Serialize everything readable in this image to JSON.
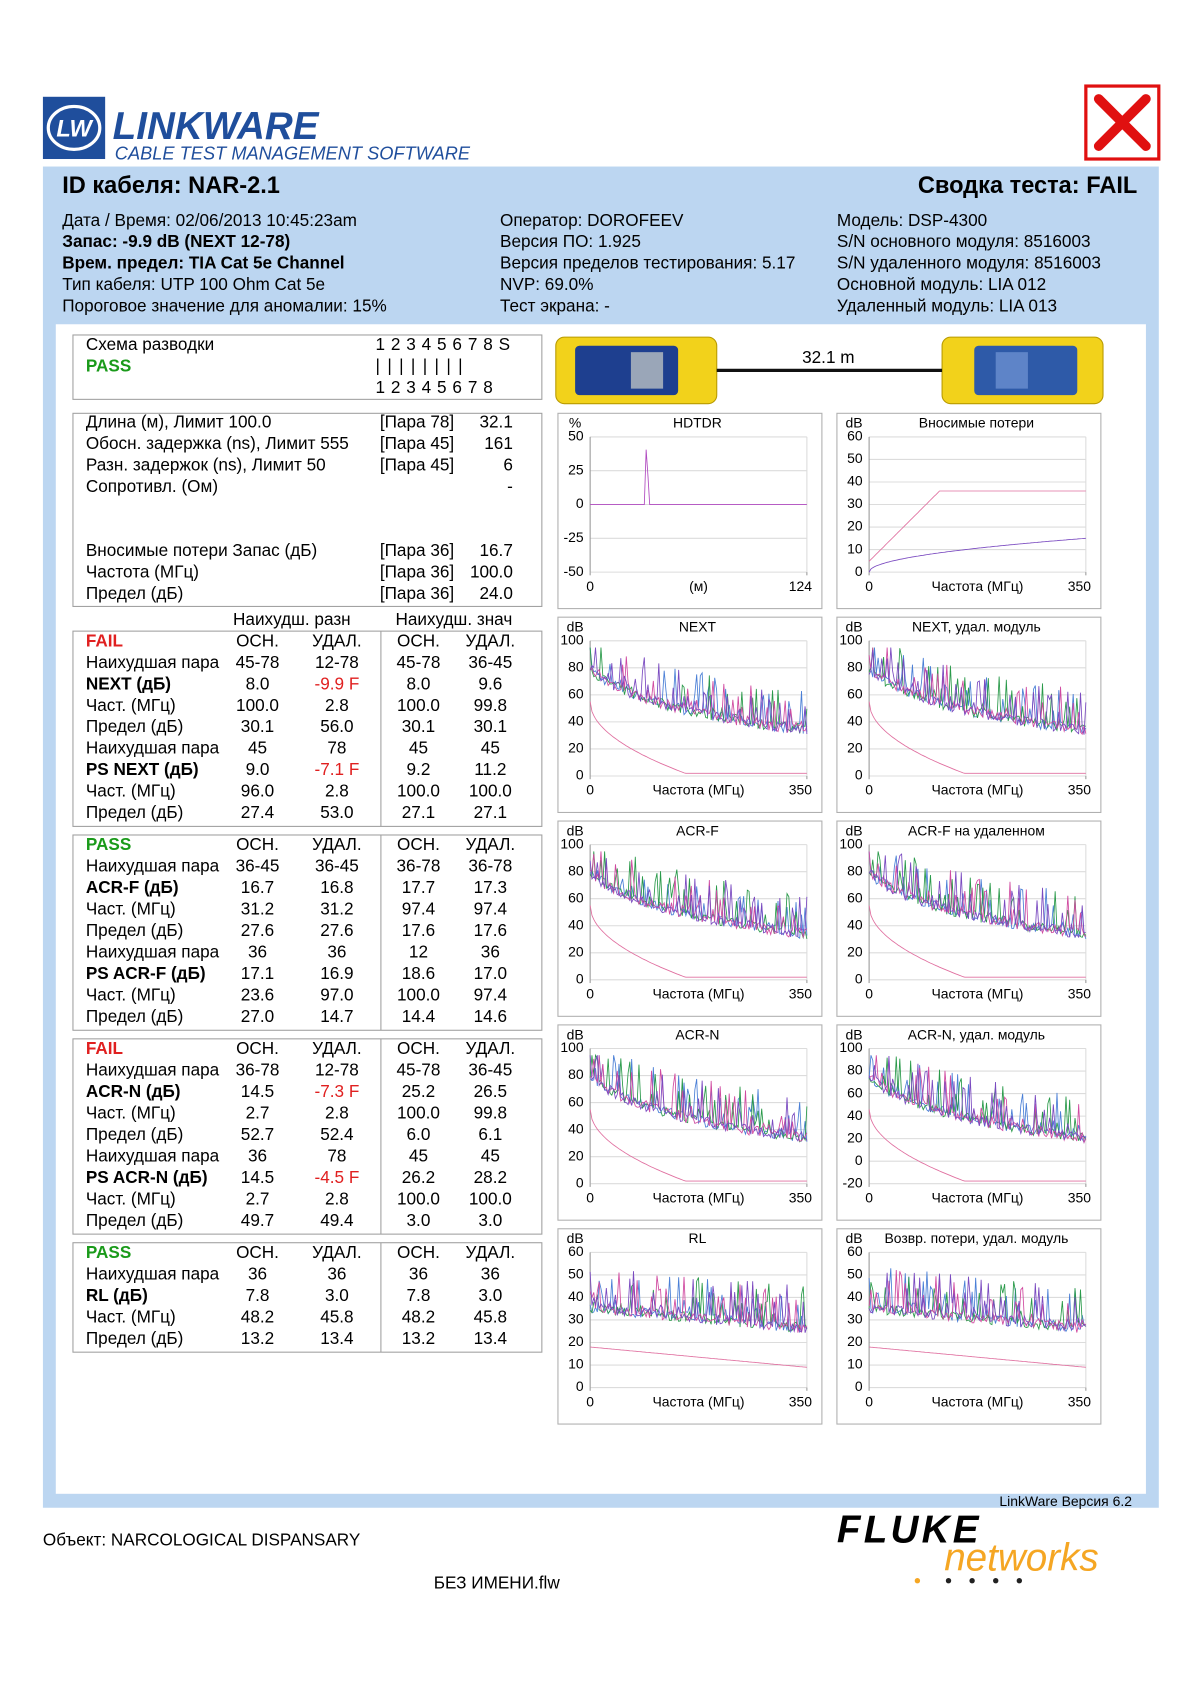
{
  "header": {
    "logo_mark": "LW",
    "logo_title": "LINKWARE",
    "logo_subtitle": "CABLE TEST MANAGEMENT SOFTWARE",
    "cable_id": "ID кабеля: NAR-2.1",
    "summary": "Сводка теста: FAIL"
  },
  "info": {
    "columns": [
      {
        "lines": [
          "Дата / Время: 02/06/2013 10:45:23am",
          "Запас: -9.9 dB (NEXT 12-78)",
          "Врем. предел: TIA Cat 5e Channel",
          "Тип кабеля: UTP 100 Ohm Cat 5e",
          "Пороговое значение для аномалии: 15%"
        ],
        "bold_lines": [
          1,
          2
        ]
      },
      {
        "lines": [
          "Оператор: DOROFEEV",
          "Версия ПО: 1.925",
          "Версия пределов тестирования: 5.17",
          "NVP: 69.0%",
          "Тест экрана: -"
        ]
      },
      {
        "lines": [
          "Модель: DSP-4300",
          "S/N основного модуля: 8516003",
          "S/N удаленного модуля: 8516003",
          "Основной модуль: LIA 012",
          "Удаленный модуль: LIA 013"
        ]
      }
    ]
  },
  "wiremap": {
    "label": "Схема разводки",
    "result": "PASS",
    "result_color": "#1a9a1a",
    "top": "1 2 3 4 5 6 7 8 S",
    "middle": "| | | | | | | |",
    "bottom": "1 2 3 4 5 6 7 8"
  },
  "devices": {
    "length": "32.1 m"
  },
  "measurements": {
    "rows": [
      {
        "label": "Длина (м), Лимит 100.0",
        "pair": "[Пара 78]",
        "value": "32.1"
      },
      {
        "label": "Обосн. задержка (ns), Лимит 555",
        "pair": "[Пара 45]",
        "value": "161"
      },
      {
        "label": "Разн. задержок (ns), Лимит 50",
        "pair": "[Пара 45]",
        "value": "6"
      },
      {
        "label": "Сопротивл. (Ом)",
        "value": "-"
      },
      {
        "label": "Вносимые потери Запас (дБ)",
        "pair": "[Пара 36]",
        "value": "16.7"
      },
      {
        "label": "Частота (МГц)",
        "pair": "[Пара 36]",
        "value": "100.0"
      },
      {
        "label": "Предел (дБ)",
        "pair": "[Пара 36]",
        "value": "24.0"
      }
    ]
  },
  "results": {
    "group_headers": [
      "Наихудш. разн",
      "Наихудш. знач"
    ],
    "sections": [
      {
        "status": "FAIL",
        "status_color": "#e02020",
        "columns": [
          "ОСН.",
          "УДАЛ.",
          "ОСН.",
          "УДАЛ."
        ],
        "rows": [
          {
            "label": "Наихудшая пара",
            "values": [
              "45-78",
              "12-78",
              "45-78",
              "36-45"
            ]
          },
          {
            "label": "NEXT (дБ)",
            "bold": true,
            "values": [
              "8.0",
              "-9.9 F",
              "8.0",
              "9.6"
            ],
            "fail_cols": [
              1
            ]
          },
          {
            "label": "Част. (МГц)",
            "values": [
              "100.0",
              "2.8",
              "100.0",
              "99.8"
            ]
          },
          {
            "label": "Предел (дБ)",
            "values": [
              "30.1",
              "56.0",
              "30.1",
              "30.1"
            ]
          },
          {
            "label": "Наихудшая пара",
            "values": [
              "45",
              "78",
              "45",
              "45"
            ]
          },
          {
            "label": "PS NEXT (дБ)",
            "bold": true,
            "values": [
              "9.0",
              "-7.1 F",
              "9.2",
              "11.2"
            ],
            "fail_cols": [
              1
            ]
          },
          {
            "label": "Част. (МГц)",
            "values": [
              "96.0",
              "2.8",
              "100.0",
              "100.0"
            ]
          },
          {
            "label": "Предел (дБ)",
            "values": [
              "27.4",
              "53.0",
              "27.1",
              "27.1"
            ]
          }
        ]
      },
      {
        "status": "PASS",
        "status_color": "#1a9a1a",
        "columns": [
          "ОСН.",
          "УДАЛ.",
          "ОСН.",
          "УДАЛ."
        ],
        "rows": [
          {
            "label": "Наихудшая пара",
            "values": [
              "36-45",
              "36-45",
              "36-78",
              "36-78"
            ]
          },
          {
            "label": "ACR-F (дБ)",
            "bold": true,
            "values": [
              "16.7",
              "16.8",
              "17.7",
              "17.3"
            ]
          },
          {
            "label": "Част. (МГц)",
            "values": [
              "31.2",
              "31.2",
              "97.4",
              "97.4"
            ]
          },
          {
            "label": "Предел (дБ)",
            "values": [
              "27.6",
              "27.6",
              "17.6",
              "17.6"
            ]
          },
          {
            "label": "Наихудшая пара",
            "values": [
              "36",
              "36",
              "12",
              "36"
            ]
          },
          {
            "label": "PS ACR-F (дБ)",
            "bold": true,
            "values": [
              "17.1",
              "16.9",
              "18.6",
              "17.0"
            ]
          },
          {
            "label": "Част. (МГц)",
            "values": [
              "23.6",
              "97.0",
              "100.0",
              "97.4"
            ]
          },
          {
            "label": "Предел (дБ)",
            "values": [
              "27.0",
              "14.7",
              "14.4",
              "14.6"
            ]
          }
        ]
      },
      {
        "status": "FAIL",
        "status_color": "#e02020",
        "columns": [
          "ОСН.",
          "УДАЛ.",
          "ОСН.",
          "УДАЛ."
        ],
        "rows": [
          {
            "label": "Наихудшая пара",
            "values": [
              "36-78",
              "12-78",
              "45-78",
              "36-45"
            ]
          },
          {
            "label": "ACR-N (дБ)",
            "bold": true,
            "values": [
              "14.5",
              "-7.3 F",
              "25.2",
              "26.5"
            ],
            "fail_cols": [
              1
            ]
          },
          {
            "label": "Част. (МГц)",
            "values": [
              "2.7",
              "2.8",
              "100.0",
              "99.8"
            ]
          },
          {
            "label": "Предел (дБ)",
            "values": [
              "52.7",
              "52.4",
              "6.0",
              "6.1"
            ]
          },
          {
            "label": "Наихудшая пара",
            "values": [
              "36",
              "78",
              "45",
              "45"
            ]
          },
          {
            "label": "PS ACR-N (дБ)",
            "bold": true,
            "values": [
              "14.5",
              "-4.5 F",
              "26.2",
              "28.2"
            ],
            "fail_cols": [
              1
            ]
          },
          {
            "label": "Част. (МГц)",
            "values": [
              "2.7",
              "2.8",
              "100.0",
              "100.0"
            ]
          },
          {
            "label": "Предел (дБ)",
            "values": [
              "49.7",
              "49.4",
              "3.0",
              "3.0"
            ]
          }
        ]
      },
      {
        "status": "PASS",
        "status_color": "#1a9a1a",
        "columns": [
          "ОСН.",
          "УДАЛ.",
          "ОСН.",
          "УДАЛ."
        ],
        "rows": [
          {
            "label": "Наихудшая пара",
            "values": [
              "36",
              "36",
              "36",
              "36"
            ]
          },
          {
            "label": "RL (дБ)",
            "bold": true,
            "values": [
              "7.8",
              "3.0",
              "7.8",
              "3.0"
            ]
          },
          {
            "label": "Част. (МГц)",
            "values": [
              "48.2",
              "45.8",
              "48.2",
              "45.8"
            ]
          },
          {
            "label": "Предел (дБ)",
            "values": [
              "13.2",
              "13.4",
              "13.2",
              "13.4"
            ]
          }
        ]
      }
    ]
  },
  "chart_data": [
    {
      "type": "line",
      "title": "HDTDR",
      "y_label": "%",
      "x_label": "(м)",
      "xlim": [
        0,
        124
      ],
      "xticks": [
        0,
        124
      ],
      "ylim": [
        -50,
        50
      ],
      "yticks": [
        50,
        25,
        0,
        -25,
        -50
      ]
    },
    {
      "type": "line",
      "title": "Вносимые потери",
      "y_label": "dB",
      "x_label": "Частота (МГц)",
      "xlim": [
        0,
        350
      ],
      "xticks": [
        0,
        350
      ],
      "ylim": [
        0,
        60
      ],
      "yticks": [
        60,
        50,
        40,
        30,
        20,
        10,
        0
      ]
    },
    {
      "type": "line",
      "title": "NEXT",
      "y_label": "dB",
      "x_label": "Частота (МГц)",
      "xlim": [
        0,
        350
      ],
      "xticks": [
        0,
        350
      ],
      "ylim": [
        0,
        100
      ],
      "yticks": [
        100,
        80,
        60,
        40,
        20,
        0
      ]
    },
    {
      "type": "line",
      "title": "NEXT, удал. модуль",
      "y_label": "dB",
      "x_label": "Частота (МГц)",
      "xlim": [
        0,
        350
      ],
      "xticks": [
        0,
        350
      ],
      "ylim": [
        0,
        100
      ],
      "yticks": [
        100,
        80,
        60,
        40,
        20,
        0
      ]
    },
    {
      "type": "line",
      "title": "ACR-F",
      "y_label": "dB",
      "x_label": "Частота (МГц)",
      "xlim": [
        0,
        350
      ],
      "xticks": [
        0,
        350
      ],
      "ylim": [
        0,
        100
      ],
      "yticks": [
        100,
        80,
        60,
        40,
        20,
        0
      ]
    },
    {
      "type": "line",
      "title": "ACR-F на удаленном",
      "y_label": "dB",
      "x_label": "Частота (МГц)",
      "xlim": [
        0,
        350
      ],
      "xticks": [
        0,
        350
      ],
      "ylim": [
        0,
        100
      ],
      "yticks": [
        100,
        80,
        60,
        40,
        20,
        0
      ]
    },
    {
      "type": "line",
      "title": "ACR-N",
      "y_label": "dB",
      "x_label": "Частота (МГц)",
      "xlim": [
        0,
        350
      ],
      "xticks": [
        0,
        350
      ],
      "ylim": [
        0,
        100
      ],
      "yticks": [
        100,
        80,
        60,
        40,
        20,
        0
      ]
    },
    {
      "type": "line",
      "title": "ACR-N, удал. модуль",
      "y_label": "dB",
      "x_label": "Частота (МГц)",
      "xlim": [
        0,
        350
      ],
      "xticks": [
        0,
        350
      ],
      "ylim": [
        -20,
        100
      ],
      "yticks": [
        100,
        80,
        60,
        40,
        20,
        0,
        -20
      ]
    },
    {
      "type": "line",
      "title": "RL",
      "y_label": "dB",
      "x_label": "Частота (МГц)",
      "xlim": [
        0,
        350
      ],
      "xticks": [
        0,
        350
      ],
      "ylim": [
        0,
        60
      ],
      "yticks": [
        60,
        50,
        40,
        30,
        20,
        10,
        0
      ]
    },
    {
      "type": "line",
      "title": "Возвр. потери, удал. модуль",
      "y_label": "dB",
      "x_label": "Частота (МГц)",
      "xlim": [
        0,
        350
      ],
      "xticks": [
        0,
        350
      ],
      "ylim": [
        0,
        60
      ],
      "yticks": [
        60,
        50,
        40,
        30,
        20,
        10,
        0
      ]
    }
  ],
  "footer": {
    "version": "LinkWare Версия 6.2",
    "site": "Объект: NARCOLOGICAL DISPANSARY",
    "file": "БЕЗ ИМЕНИ.flw",
    "brand": "FLUKE",
    "brand_sub": "networks"
  }
}
